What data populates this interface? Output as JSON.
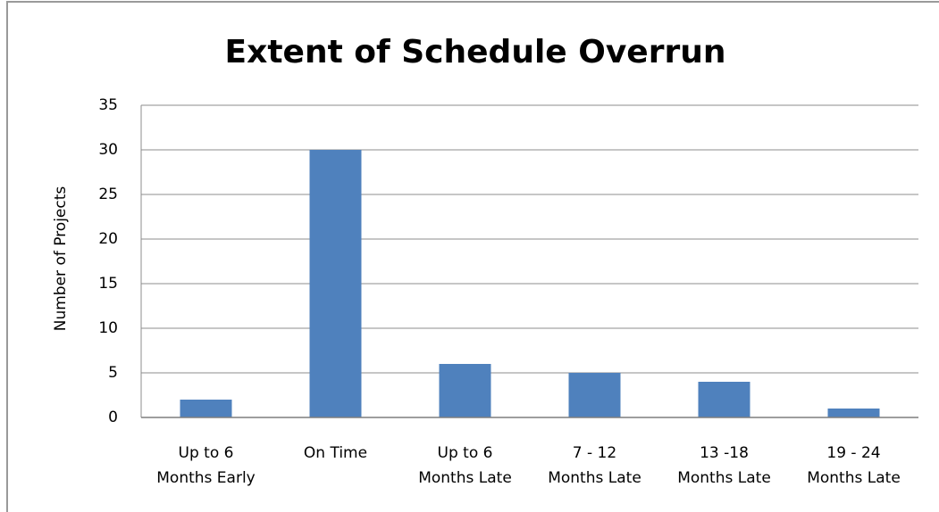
{
  "chart_data": {
    "type": "bar",
    "title": "Extent of Schedule Overrun",
    "y_label": "Number of Projects",
    "categories": [
      [
        "Up to 6",
        "Months Early"
      ],
      [
        "On Time"
      ],
      [
        "Up to 6",
        "Months Late"
      ],
      [
        "7 - 12",
        "Months Late"
      ],
      [
        "13 -18",
        "Months Late"
      ],
      [
        "19 - 24",
        "Months Late"
      ]
    ],
    "values": [
      2,
      30,
      6,
      5,
      4,
      1
    ],
    "color": "#4f81bd",
    "ylim": [
      0,
      35
    ],
    "yticks": [
      0,
      5,
      10,
      15,
      20,
      25,
      30,
      35
    ],
    "grid": true
  }
}
